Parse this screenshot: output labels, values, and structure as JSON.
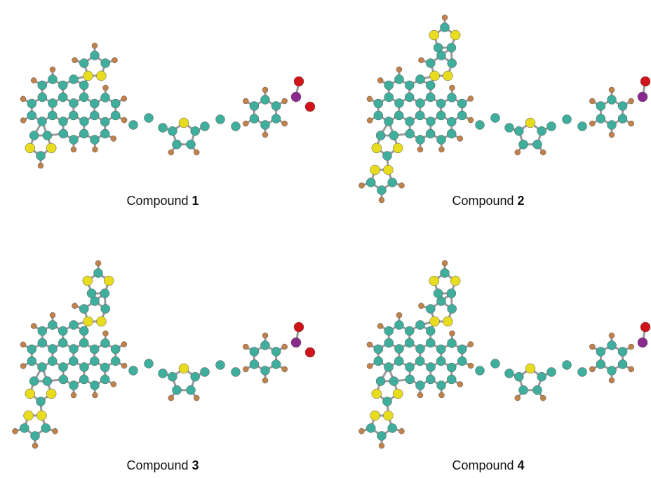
{
  "panels": [
    {
      "label": "Compound",
      "number": "1"
    },
    {
      "label": "Compound",
      "number": "2"
    },
    {
      "label": "Compound",
      "number": "3"
    },
    {
      "label": "Compound",
      "number": "4"
    }
  ]
}
